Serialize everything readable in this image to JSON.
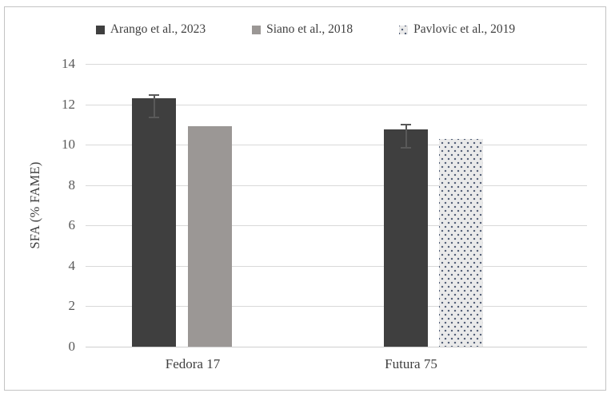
{
  "figure": {
    "border_color": "#c3c3c3",
    "background": "#ffffff",
    "gridline_color": "#d9d9d9",
    "axis_line_color": "#cfcfcf",
    "text_color": "#404040",
    "tick_text_color": "#595959",
    "error_bar_color": "#595959"
  },
  "chart_data": {
    "type": "bar",
    "categories": [
      "Fedora 17",
      "Futura 75"
    ],
    "series": [
      {
        "name": "Arango et al., 2023",
        "fill": "solid",
        "color": "#3f3f3f",
        "values": [
          12.3,
          10.75
        ]
      },
      {
        "name": "Siano et al., 2018",
        "fill": "solid",
        "color": "#9b9795",
        "values": [
          10.9,
          null
        ]
      },
      {
        "name": "Pavlovic et al., 2019",
        "fill": "dots",
        "color": "#eaeaea",
        "dot_color": "#4e5b73",
        "values": [
          null,
          10.3
        ]
      }
    ],
    "error_bars": [
      {
        "series": 0,
        "category": 0,
        "low": 11.3,
        "high": 12.5
      },
      {
        "series": 0,
        "category": 1,
        "low": 9.8,
        "high": 11.05
      }
    ],
    "title": "",
    "xlabel": "",
    "ylabel": "SFA (% FAME)",
    "ylim": [
      0,
      14
    ],
    "yticks": [
      0,
      2,
      4,
      6,
      8,
      10,
      12,
      14
    ],
    "grid": true,
    "legend_position": "top"
  }
}
